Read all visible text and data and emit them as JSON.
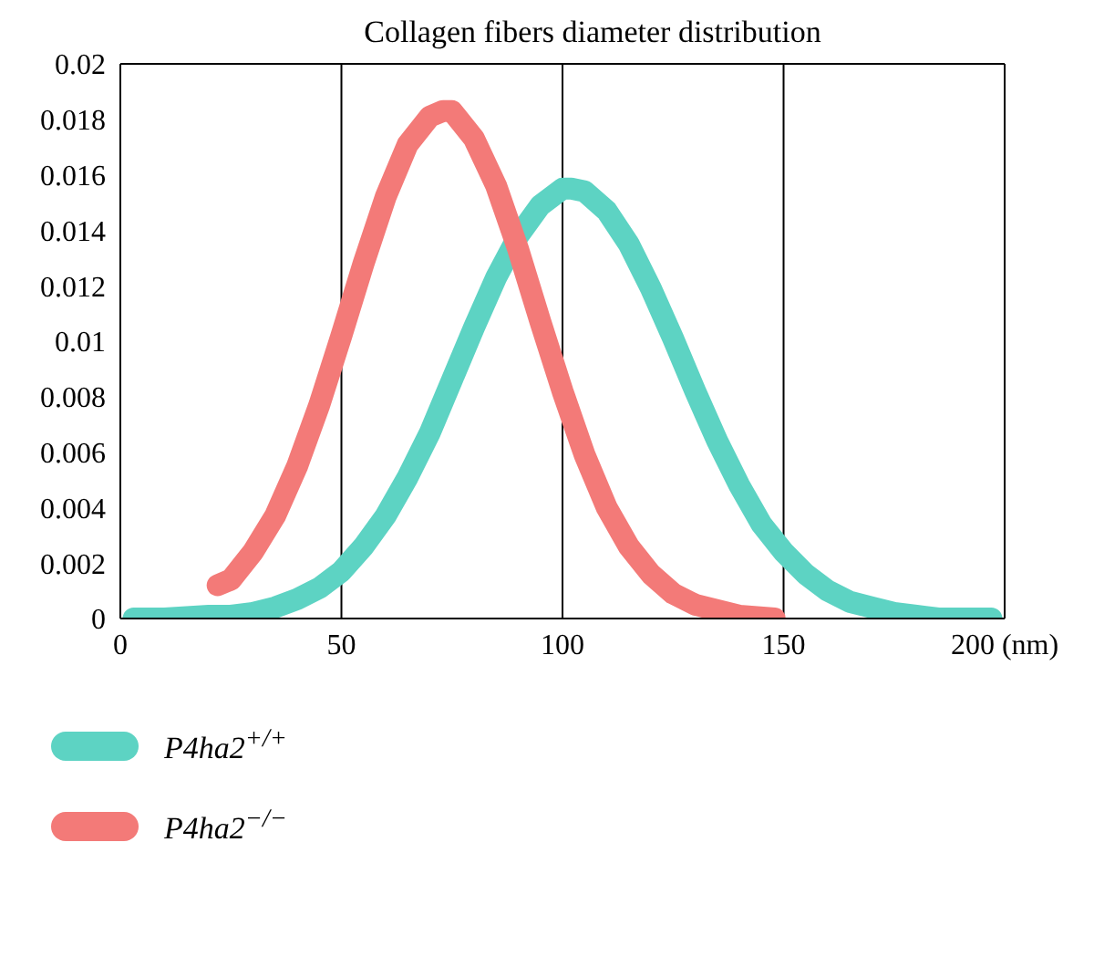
{
  "chart_data": {
    "type": "line",
    "title": "Collagen fibers diameter distribution",
    "xlim": [
      0,
      200
    ],
    "xticks": [
      0,
      50,
      100,
      150,
      {
        "value": 200,
        "label": "200 (nm)"
      }
    ],
    "ylim": [
      0,
      0.02
    ],
    "yticks": [
      0,
      0.002,
      0.004,
      0.006,
      0.008,
      0.01,
      0.012,
      0.014,
      0.016,
      0.018,
      0.02
    ],
    "grid": "x",
    "legend": "bottom",
    "marker": "none",
    "line_style": "solid",
    "series": [
      {
        "name": "P4ha2$^{+/+}$",
        "color": "#5dd3c3",
        "x": [
          3,
          10,
          20,
          25,
          30,
          35,
          40,
          45,
          50,
          55,
          60,
          65,
          70,
          75,
          80,
          85,
          90,
          95,
          100,
          102,
          105,
          110,
          115,
          120,
          125,
          130,
          135,
          140,
          145,
          150,
          155,
          160,
          165,
          170,
          175,
          180,
          185,
          190,
          197
        ],
        "values": [
          0,
          0,
          0.0001,
          0.0001,
          0.0002,
          0.0004,
          0.0007,
          0.0011,
          0.0017,
          0.0026,
          0.0037,
          0.0051,
          0.0067,
          0.0086,
          0.0105,
          0.0123,
          0.0138,
          0.0149,
          0.0155,
          0.0155,
          0.0154,
          0.0147,
          0.0135,
          0.0119,
          0.0101,
          0.0082,
          0.0064,
          0.0048,
          0.0034,
          0.0024,
          0.0016,
          0.001,
          0.0006,
          0.0004,
          0.0002,
          0.0001,
          0,
          0,
          0
        ]
      },
      {
        "name": "P4ha2$^{−/−}$",
        "color": "#f37a78",
        "x": [
          22,
          25,
          30,
          35,
          40,
          45,
          50,
          55,
          60,
          65,
          70,
          73,
          75,
          80,
          85,
          90,
          95,
          100,
          105,
          110,
          115,
          120,
          125,
          130,
          135,
          140,
          148
        ],
        "values": [
          0.0012,
          0.0014,
          0.0024,
          0.0037,
          0.0055,
          0.0077,
          0.0102,
          0.0128,
          0.0152,
          0.0171,
          0.0181,
          0.0183,
          0.0183,
          0.0173,
          0.0156,
          0.0133,
          0.0107,
          0.0082,
          0.0059,
          0.004,
          0.0026,
          0.0016,
          0.0009,
          0.0005,
          0.0003,
          0.0001,
          0
        ]
      }
    ]
  }
}
